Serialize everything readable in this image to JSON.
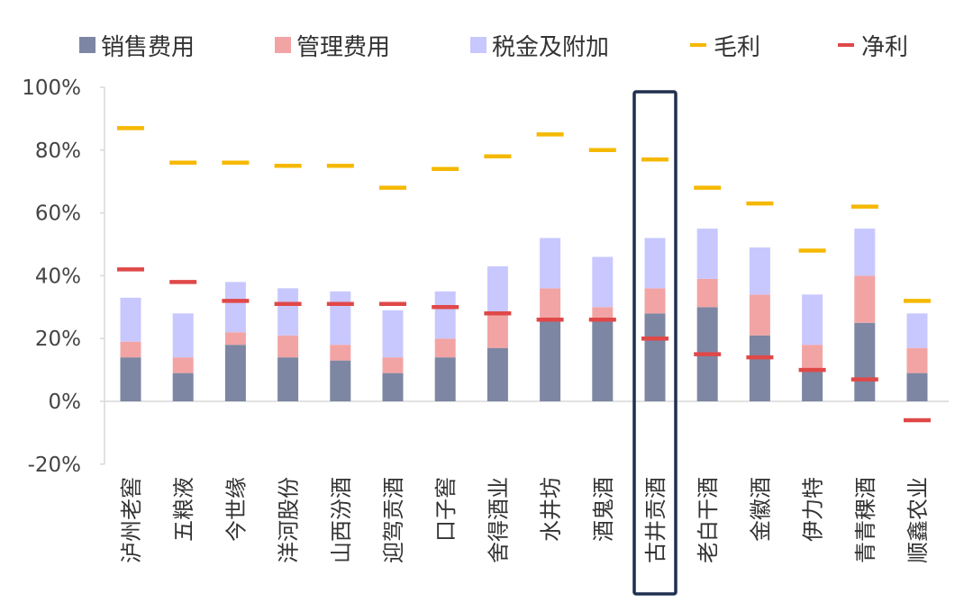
{
  "chart_data": {
    "type": "bar",
    "stacked": true,
    "categories": [
      "泸州老窖",
      "五粮液",
      "今世缘",
      "洋河股份",
      "山西汾酒",
      "迎驾贡酒",
      "口子窖",
      "舍得酒业",
      "水井坊",
      "酒鬼酒",
      "古井贡酒",
      "老白干酒",
      "金徽酒",
      "伊力特",
      "青青稞酒",
      "顺鑫农业"
    ],
    "series": [
      {
        "name": "销售费用",
        "color": "#7d86a3",
        "values": [
          14,
          9,
          18,
          14,
          13,
          9,
          14,
          17,
          26,
          26,
          28,
          30,
          21,
          10,
          25,
          9
        ]
      },
      {
        "name": "管理费用",
        "color": "#f2a4a4",
        "values": [
          5,
          5,
          4,
          7,
          5,
          5,
          6,
          11,
          10,
          4,
          8,
          9,
          13,
          8,
          15,
          8
        ]
      },
      {
        "name": "税金及附加",
        "color": "#c8c8ff",
        "values": [
          14,
          14,
          16,
          15,
          17,
          15,
          15,
          15,
          16,
          16,
          16,
          16,
          15,
          16,
          15,
          11
        ]
      }
    ],
    "markers": [
      {
        "name": "毛利",
        "color": "#f5b800",
        "values": [
          87,
          76,
          76,
          75,
          75,
          68,
          74,
          78,
          85,
          80,
          77,
          68,
          63,
          48,
          62,
          32
        ]
      },
      {
        "name": "净利",
        "color": "#e04848",
        "values": [
          42,
          38,
          32,
          31,
          31,
          31,
          30,
          28,
          26,
          26,
          20,
          15,
          14,
          10,
          7,
          -6
        ]
      }
    ],
    "highlight": "古井贡酒",
    "ylim": [
      -20,
      100
    ],
    "yticks": [
      "-20%",
      "0%",
      "20%",
      "40%",
      "60%",
      "80%",
      "100%"
    ],
    "ytick_values": [
      -20,
      0,
      20,
      40,
      60,
      80,
      100
    ],
    "title": "",
    "xlabel": "",
    "ylabel": ""
  },
  "legend": {
    "sales": "销售费用",
    "admin": "管理费用",
    "tax": "税金及附加",
    "gross": "毛利",
    "net": "净利"
  }
}
